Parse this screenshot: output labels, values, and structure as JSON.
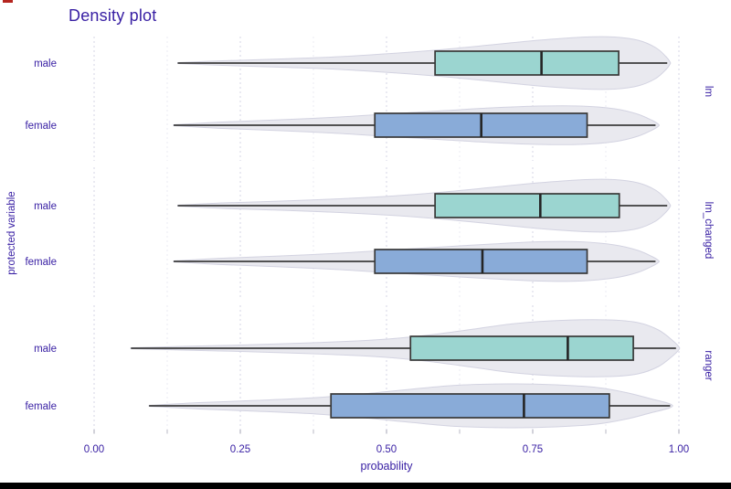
{
  "title": "Density plot",
  "axes": {
    "x_label": "probability",
    "y_label": "protected variable"
  },
  "colors": {
    "text": "#371ea3",
    "male_box_fill": "#9bd5d0",
    "female_box_fill": "#89abd8",
    "box_stroke": "#383838",
    "median_stroke": "#242424",
    "whisker": "#3d3d3d",
    "violin_fill": "#e9e9ef",
    "violin_stroke": "#d3d3e1",
    "grid_major": "#dddde9",
    "grid_minor": "#ebebf3",
    "axis_tick": "#b9b9c6",
    "bottom_bar": "#000000",
    "corner_mark": "#b5251f",
    "background": "#ffffff"
  },
  "chart_data": {
    "type": "violin+box horizontal, faceted by model",
    "title": "Density plot",
    "xlabel": "probability",
    "ylabel": "protected variable",
    "x_range": [
      0,
      1
    ],
    "x_ticks": [
      0,
      0.25,
      0.5,
      0.75,
      1
    ],
    "x_tick_labels": [
      "0.00",
      "0.25",
      "0.50",
      "0.75",
      "1.00"
    ],
    "x_minor_ticks": [
      0.125,
      0.375,
      0.625,
      0.875
    ],
    "grid": "vertical dashed, major+minor",
    "legend": "none (facet strips on right)",
    "facets": [
      {
        "label": "lm",
        "rows": [
          {
            "category": "male",
            "color_key": "male_box_fill",
            "box": {
              "whisker_min": 0.143,
              "q1": 0.583,
              "median": 0.765,
              "q3": 0.897,
              "whisker_max": 0.98
            },
            "violin": [
              [
                0.143,
                0.5
              ],
              [
                0.22,
                2.5
              ],
              [
                0.32,
                4.5
              ],
              [
                0.42,
                7
              ],
              [
                0.52,
                11
              ],
              [
                0.6,
                15
              ],
              [
                0.68,
                20
              ],
              [
                0.76,
                25
              ],
              [
                0.84,
                28.5
              ],
              [
                0.89,
                28.5
              ],
              [
                0.93,
                25
              ],
              [
                0.96,
                17
              ],
              [
                0.978,
                7
              ],
              [
                0.985,
                1
              ]
            ]
          },
          {
            "category": "female",
            "color_key": "female_box_fill",
            "box": {
              "whisker_min": 0.136,
              "q1": 0.48,
              "median": 0.662,
              "q3": 0.843,
              "whisker_max": 0.96
            },
            "violin": [
              [
                0.136,
                0.5
              ],
              [
                0.22,
                3.5
              ],
              [
                0.32,
                6
              ],
              [
                0.42,
                9
              ],
              [
                0.52,
                13
              ],
              [
                0.6,
                16
              ],
              [
                0.68,
                19
              ],
              [
                0.76,
                21
              ],
              [
                0.83,
                21
              ],
              [
                0.89,
                18
              ],
              [
                0.93,
                12
              ],
              [
                0.955,
                5
              ],
              [
                0.965,
                1
              ]
            ]
          }
        ]
      },
      {
        "label": "lm_changed",
        "rows": [
          {
            "category": "male",
            "color_key": "male_box_fill",
            "box": {
              "whisker_min": 0.143,
              "q1": 0.583,
              "median": 0.763,
              "q3": 0.898,
              "whisker_max": 0.98
            },
            "violin": [
              [
                0.143,
                0.5
              ],
              [
                0.22,
                3
              ],
              [
                0.32,
                5
              ],
              [
                0.42,
                7.5
              ],
              [
                0.52,
                11
              ],
              [
                0.6,
                15
              ],
              [
                0.68,
                20
              ],
              [
                0.76,
                25
              ],
              [
                0.84,
                28.5
              ],
              [
                0.89,
                28.5
              ],
              [
                0.93,
                25
              ],
              [
                0.96,
                17
              ],
              [
                0.978,
                7
              ],
              [
                0.985,
                1
              ]
            ]
          },
          {
            "category": "female",
            "color_key": "female_box_fill",
            "box": {
              "whisker_min": 0.136,
              "q1": 0.48,
              "median": 0.664,
              "q3": 0.843,
              "whisker_max": 0.96
            },
            "violin": [
              [
                0.136,
                0.5
              ],
              [
                0.22,
                3.5
              ],
              [
                0.32,
                6
              ],
              [
                0.42,
                9
              ],
              [
                0.52,
                13
              ],
              [
                0.6,
                16
              ],
              [
                0.68,
                19
              ],
              [
                0.76,
                21.5
              ],
              [
                0.83,
                21.5
              ],
              [
                0.89,
                18
              ],
              [
                0.93,
                12
              ],
              [
                0.955,
                5
              ],
              [
                0.965,
                1
              ]
            ]
          }
        ]
      },
      {
        "label": "ranger",
        "rows": [
          {
            "category": "male",
            "color_key": "male_box_fill",
            "box": {
              "whisker_min": 0.063,
              "q1": 0.541,
              "median": 0.81,
              "q3": 0.922,
              "whisker_max": 0.995
            },
            "violin": [
              [
                0.063,
                0.5
              ],
              [
                0.15,
                2
              ],
              [
                0.25,
                3.5
              ],
              [
                0.35,
                5.5
              ],
              [
                0.45,
                8
              ],
              [
                0.52,
                11
              ],
              [
                0.58,
                15
              ],
              [
                0.65,
                21
              ],
              [
                0.72,
                27
              ],
              [
                0.8,
                30.5
              ],
              [
                0.88,
                31
              ],
              [
                0.93,
                28
              ],
              [
                0.965,
                20
              ],
              [
                0.99,
                8
              ],
              [
                1.0,
                1.5
              ]
            ]
          },
          {
            "category": "female",
            "color_key": "female_box_fill",
            "box": {
              "whisker_min": 0.094,
              "q1": 0.405,
              "median": 0.735,
              "q3": 0.881,
              "whisker_max": 0.985
            },
            "violin": [
              [
                0.094,
                0.5
              ],
              [
                0.18,
                3.5
              ],
              [
                0.28,
                6
              ],
              [
                0.38,
                9
              ],
              [
                0.46,
                13
              ],
              [
                0.54,
                18
              ],
              [
                0.62,
                22.5
              ],
              [
                0.71,
                24
              ],
              [
                0.79,
                23
              ],
              [
                0.86,
                20
              ],
              [
                0.91,
                14.5
              ],
              [
                0.95,
                8
              ],
              [
                0.985,
                2
              ]
            ]
          }
        ]
      }
    ]
  }
}
